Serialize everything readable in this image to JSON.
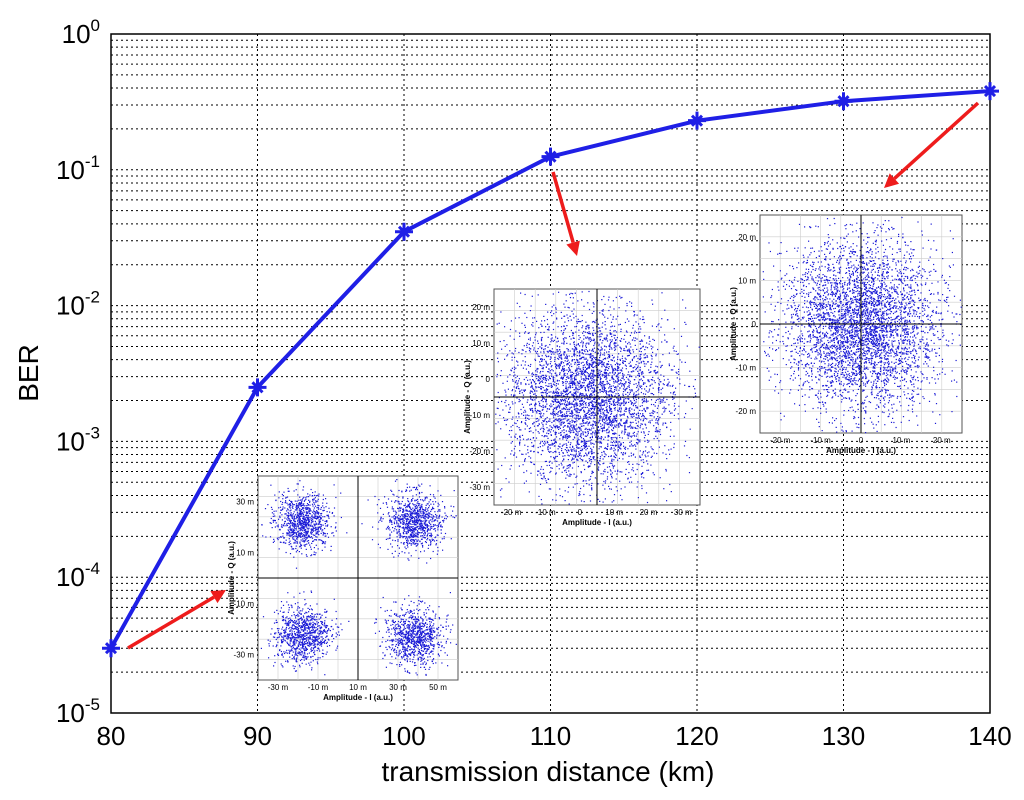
{
  "chart_data": {
    "type": "line",
    "xlabel": "transmission distance (km)",
    "ylabel": "BER",
    "xlim": [
      80,
      140
    ],
    "ylim": [
      1e-05,
      1
    ],
    "y_scale": "log",
    "grid": true,
    "x_ticks": [
      "80",
      "90",
      "100",
      "110",
      "120",
      "130",
      "140"
    ],
    "y_ticks": [
      {
        "base": "10",
        "exp": "0"
      },
      {
        "base": "10",
        "exp": "-1"
      },
      {
        "base": "10",
        "exp": "-2"
      },
      {
        "base": "10",
        "exp": "-3"
      },
      {
        "base": "10",
        "exp": "-4"
      },
      {
        "base": "10",
        "exp": "-5"
      }
    ],
    "series": [
      {
        "color": "#1f1fe6",
        "x": [
          80,
          90,
          100,
          110,
          120,
          130,
          140
        ],
        "y": [
          3e-05,
          0.0025,
          0.035,
          0.125,
          0.23,
          0.32,
          0.38
        ]
      }
    ],
    "annotation_color": "#ee1c1c",
    "insets": [
      {
        "name": "inset-80km",
        "ylabel": "Amplitude - Q (a.u.)",
        "xlabel": "Amplitude - I (a.u.)",
        "x_ticks": [
          "-30 m",
          "-10 m",
          "10 m",
          "30 m",
          "50 m"
        ],
        "y_ticks": [
          "30 m",
          "10 m",
          "-10 m",
          "-30 m"
        ]
      },
      {
        "name": "inset-110km",
        "ylabel": "Amplitude - Q (a.u.)",
        "xlabel": "Amplitude - I (a.u.)",
        "x_ticks": [
          "-20 m",
          "-10 m",
          "0",
          "10 m",
          "20 m",
          "30 m"
        ],
        "y_ticks": [
          "20 m",
          "10 m",
          "0",
          "-10 m",
          "-20 m",
          "-30 m"
        ]
      },
      {
        "name": "inset-140km",
        "ylabel": "Amplitude - Q (a.u.)",
        "xlabel": "Amplitude - I (a.u.)",
        "x_ticks": [
          "-20 m",
          "-10 m",
          "0",
          "10 m",
          "20 m"
        ],
        "y_ticks": [
          "20 m",
          "10 m",
          "0",
          "-10 m",
          "-20 m"
        ]
      }
    ]
  }
}
